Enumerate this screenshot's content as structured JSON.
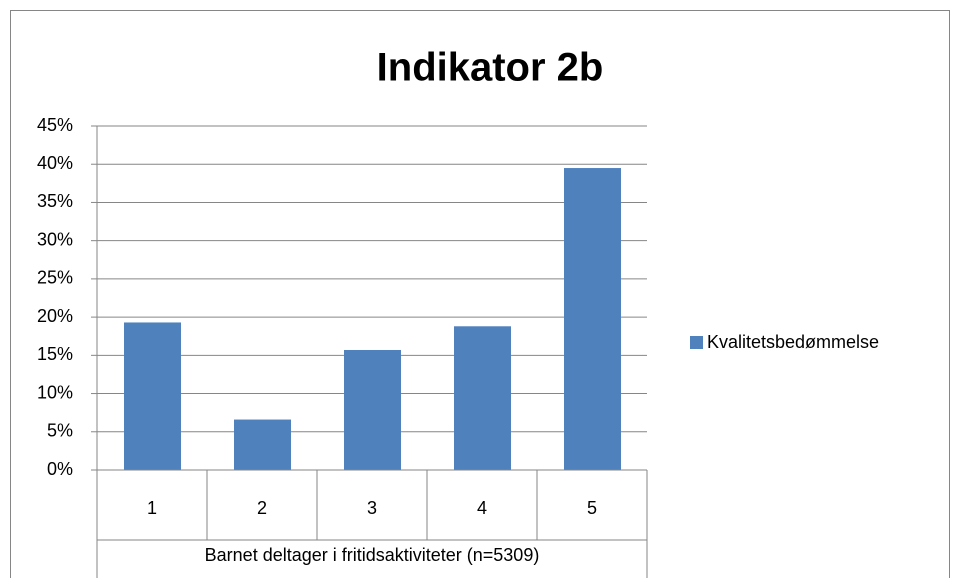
{
  "chart_data": {
    "type": "bar",
    "title": "Indikator 2b",
    "xlabel": "Barnet deltager i fritidsaktiviteter (n=5309)",
    "categories": [
      "1",
      "2",
      "3",
      "4",
      "5"
    ],
    "series": [
      {
        "name": "Kvalitetsbedømmelse",
        "color": "#4f81bd",
        "values": [
          19.3,
          6.6,
          15.7,
          18.8,
          39.5
        ]
      }
    ],
    "ylim": [
      0,
      45
    ],
    "yticks": [
      {
        "value": 0,
        "label": "0%"
      },
      {
        "value": 5,
        "label": "5%"
      },
      {
        "value": 10,
        "label": "10%"
      },
      {
        "value": 15,
        "label": "15%"
      },
      {
        "value": 20,
        "label": "20%"
      },
      {
        "value": 25,
        "label": "25%"
      },
      {
        "value": 30,
        "label": "30%"
      },
      {
        "value": 35,
        "label": "35%"
      },
      {
        "value": 40,
        "label": "40%"
      },
      {
        "value": 45,
        "label": "45%"
      }
    ],
    "grid": true,
    "legend": "right"
  }
}
